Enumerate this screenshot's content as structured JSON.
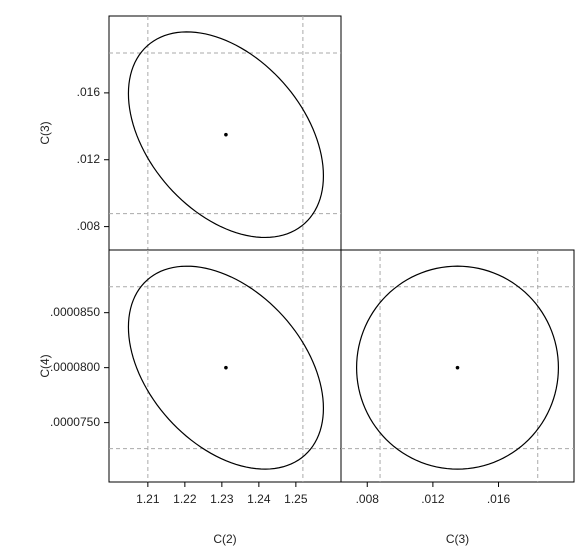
{
  "chart_data": [
    {
      "type": "ellipse",
      "ylabel": "C(3)",
      "xlim": [
        1.1995,
        1.2622
      ],
      "ylim": [
        0.0066,
        0.0206
      ],
      "yticks": [
        {
          "value": 0.008,
          "label": ".008"
        },
        {
          "value": 0.012,
          "label": ".012"
        },
        {
          "value": 0.016,
          "label": ".016"
        }
      ],
      "point": {
        "x": 1.2311,
        "y": 0.0135
      },
      "ellipse": {
        "x_radius": 0.02635,
        "y_radius": 0.00615,
        "correlation": -0.4
      },
      "x_interval": [
        1.21,
        1.2519
      ],
      "y_interval": [
        0.00878,
        0.01839
      ]
    },
    {
      "type": "ellipse",
      "xlabel": "C(2)",
      "ylabel": "C(4)",
      "xlim": [
        1.1995,
        1.2622
      ],
      "ylim": [
        6.96e-05,
        9.07e-05
      ],
      "xticks": [
        1.21,
        1.22,
        1.23,
        1.24,
        1.25
      ],
      "yticks": [
        {
          "value": 7.5e-05,
          "label": ".0000750"
        },
        {
          "value": 8e-05,
          "label": ".0000800"
        },
        {
          "value": 8.5e-05,
          "label": ".0000850"
        }
      ],
      "point": {
        "x": 1.2311,
        "y": 8e-05
      },
      "ellipse": {
        "x_radius": 0.02635,
        "y_radius": 9.23e-06,
        "correlation": -0.4
      },
      "x_interval": [
        1.21,
        1.2519
      ],
      "y_interval": [
        7.264e-05,
        8.736e-05
      ]
    },
    {
      "type": "ellipse",
      "xlabel": "C(3)",
      "xlim": [
        0.0064,
        0.0206
      ],
      "ylim": [
        6.96e-05,
        9.07e-05
      ],
      "xticks": [
        {
          "value": 0.008,
          "label": ".008"
        },
        {
          "value": 0.012,
          "label": ".012"
        },
        {
          "value": 0.016,
          "label": ".016"
        }
      ],
      "point": {
        "x": 0.0135,
        "y": 8e-05
      },
      "ellipse": {
        "x_radius": 0.00615,
        "y_radius": 9.23e-06,
        "correlation": 0
      },
      "x_interval": [
        0.00878,
        0.01839
      ],
      "y_interval": [
        7.264e-05,
        8.736e-05
      ]
    }
  ]
}
